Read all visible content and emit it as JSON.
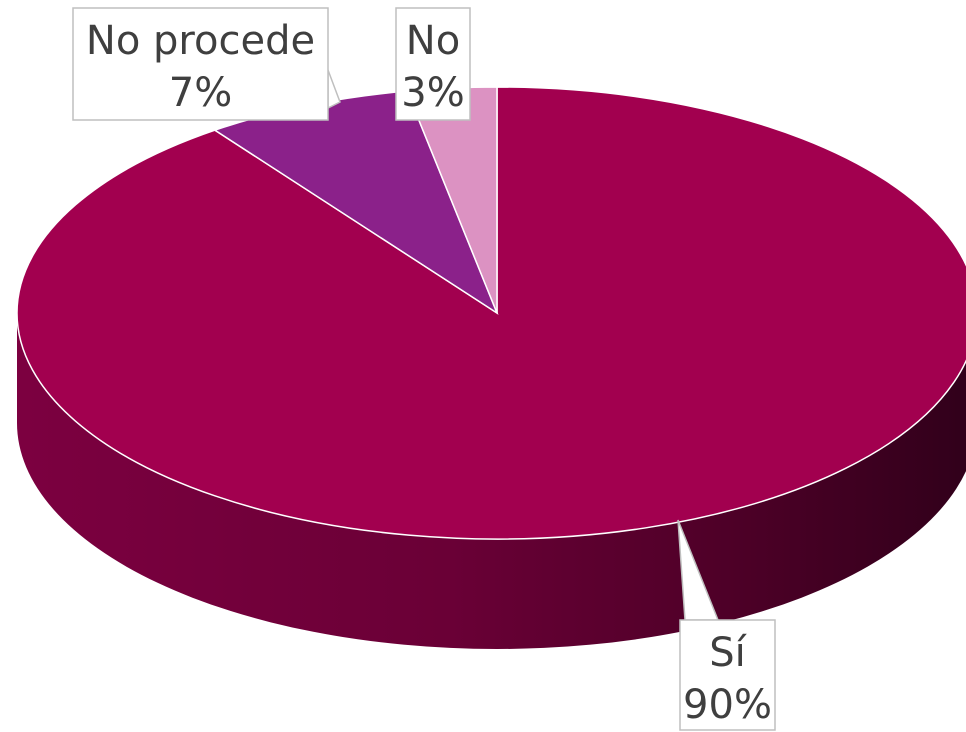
{
  "chart_data": {
    "type": "pie",
    "style": "3d",
    "slices": [
      {
        "label": "Sí",
        "value": 90,
        "display": "90%",
        "color": "#a2004f"
      },
      {
        "label": "No procede",
        "value": 7,
        "display": "7%",
        "color": "#8b218a"
      },
      {
        "label": "No",
        "value": 3,
        "display": "3%",
        "color": "#dc92c2"
      }
    ]
  }
}
